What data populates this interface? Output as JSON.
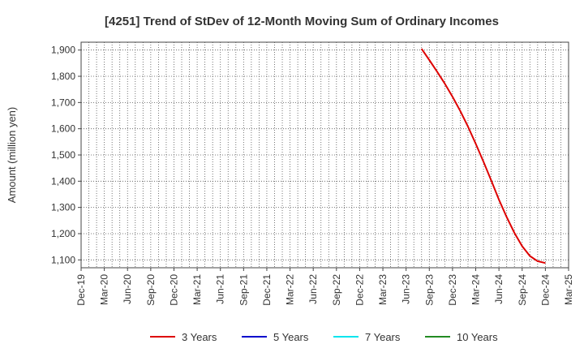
{
  "chart_data": {
    "type": "line",
    "title": "[4251]  Trend of StDev of 12-Month Moving Sum of Ordinary Incomes",
    "xlabel": "",
    "ylabel": "Amount (million yen)",
    "ylim": [
      1070,
      1930
    ],
    "yticks": [
      1100,
      1200,
      1300,
      1400,
      1500,
      1600,
      1700,
      1800,
      1900
    ],
    "ytick_labels": [
      "1,100",
      "1,200",
      "1,300",
      "1,400",
      "1,500",
      "1,600",
      "1,700",
      "1,800",
      "1,900"
    ],
    "xtick_labels": [
      "Dec-19",
      "Mar-20",
      "Jun-20",
      "Sep-20",
      "Dec-20",
      "Mar-21",
      "Jun-21",
      "Sep-21",
      "Dec-21",
      "Mar-22",
      "Jun-22",
      "Sep-22",
      "Dec-22",
      "Mar-23",
      "Jun-23",
      "Sep-23",
      "Dec-23",
      "Mar-24",
      "Jun-24",
      "Sep-24",
      "Dec-24",
      "Mar-25"
    ],
    "grid": true,
    "legend_position": "bottom",
    "series": [
      {
        "name": "3 Years",
        "color": "#dd0000",
        "x": [
          "Aug-23",
          "Sep-23",
          "Oct-23",
          "Nov-23",
          "Dec-23",
          "Jan-24",
          "Feb-24",
          "Mar-24",
          "Apr-24",
          "May-24",
          "Jun-24",
          "Jul-24",
          "Aug-24",
          "Sep-24",
          "Oct-24",
          "Nov-24",
          "Dec-24"
        ],
        "x_index": [
          44,
          45,
          46,
          47,
          48,
          49,
          50,
          51,
          52,
          53,
          54,
          55,
          56,
          57,
          58,
          59,
          60
        ],
        "values": [
          1905,
          1862,
          1818,
          1772,
          1722,
          1668,
          1608,
          1543,
          1474,
          1403,
          1330,
          1263,
          1203,
          1152,
          1115,
          1095,
          1088
        ]
      },
      {
        "name": "5 Years",
        "color": "#0000cc",
        "x": [],
        "x_index": [],
        "values": []
      },
      {
        "name": "7 Years",
        "color": "#00e5ee",
        "x": [],
        "x_index": [],
        "values": []
      },
      {
        "name": "10 Years",
        "color": "#228b22",
        "x": [],
        "x_index": [],
        "values": []
      }
    ]
  }
}
